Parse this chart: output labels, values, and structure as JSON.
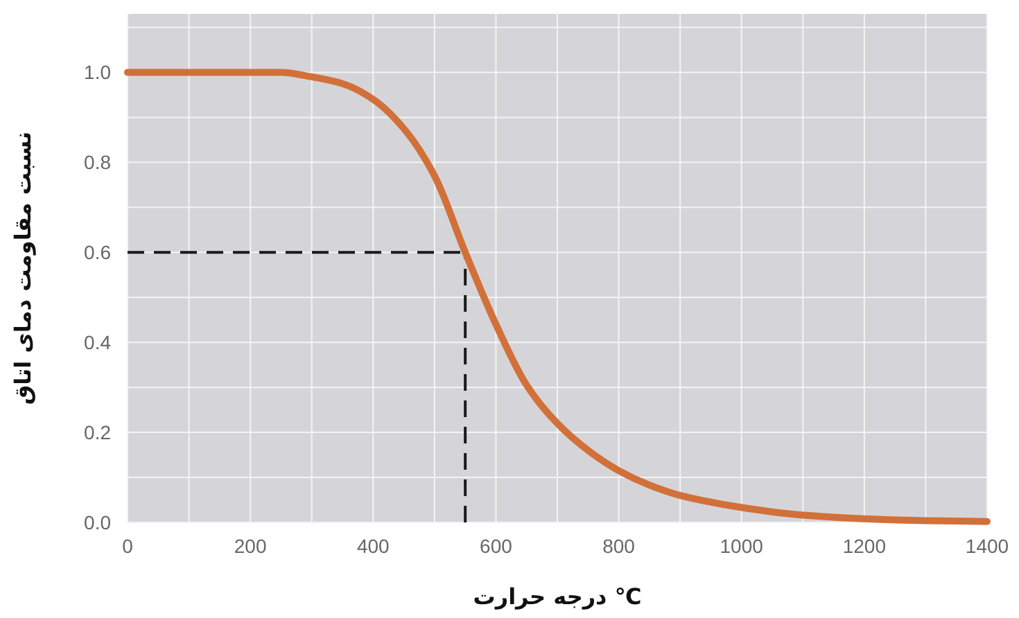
{
  "chart_data": {
    "type": "line",
    "xlabel": "درجه حرارت ℃",
    "ylabel": "نسبت مقاومت دمای اتاق",
    "x": [
      0,
      100,
      200,
      250,
      300,
      350,
      400,
      450,
      500,
      550,
      600,
      650,
      700,
      750,
      800,
      850,
      900,
      1000,
      1100,
      1200,
      1300,
      1400
    ],
    "series": [
      {
        "color": "#d2703a",
        "values": [
          1.0,
          1.0,
          1.0,
          1.0,
          0.99,
          0.975,
          0.94,
          0.875,
          0.77,
          0.6,
          0.44,
          0.305,
          0.22,
          0.16,
          0.115,
          0.083,
          0.06,
          0.033,
          0.016,
          0.008,
          0.004,
          0.002
        ]
      }
    ],
    "xlim": [
      0,
      1400
    ],
    "xticks": [
      0,
      200,
      400,
      600,
      800,
      1000,
      1200,
      1400
    ],
    "ylim": [
      0,
      1.13
    ],
    "yticks": [
      {
        "value": 0,
        "label": "0.0"
      },
      0.2,
      0.4,
      0.6,
      0.8,
      {
        "value": 1,
        "label": "1.0"
      }
    ],
    "ref_lines": [
      {
        "axis": "y",
        "value": 0.6,
        "color": "#1a1a1a",
        "line_style": "dashed"
      },
      {
        "axis": "x",
        "value": 550,
        "color": "#1a1a1a",
        "line_style": "dashed"
      }
    ],
    "grid": true
  }
}
